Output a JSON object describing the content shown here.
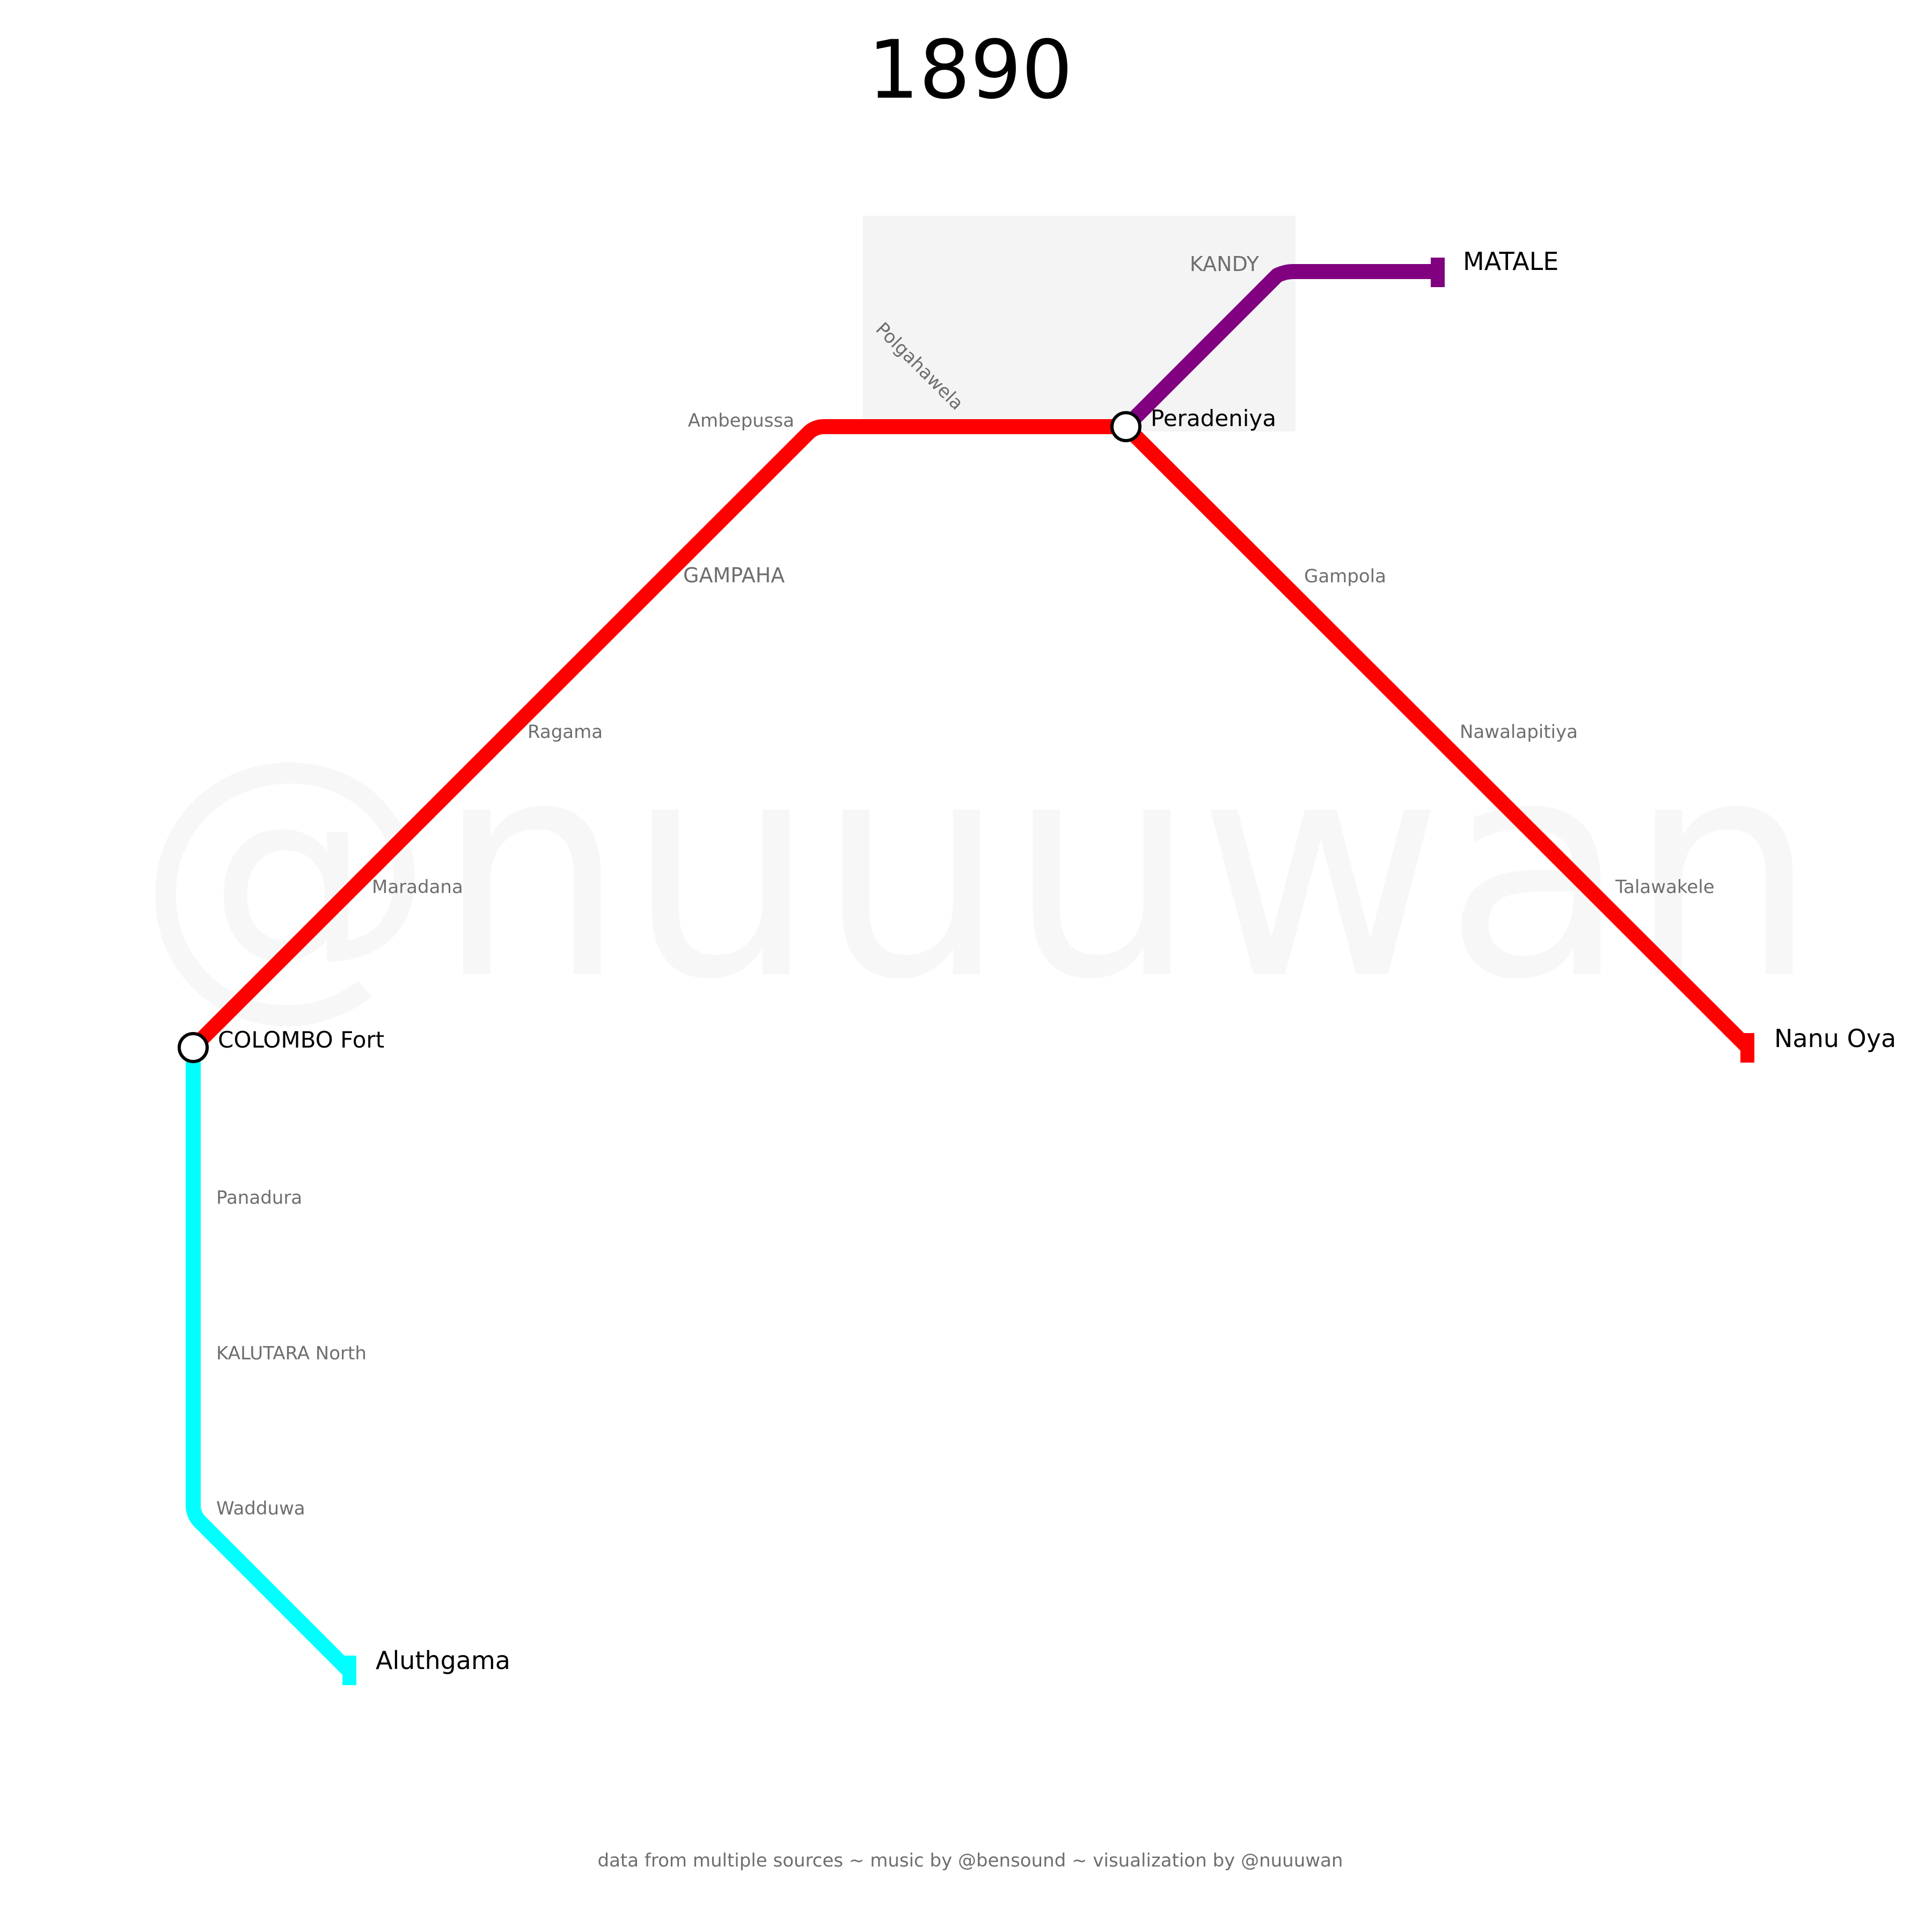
{
  "title": "1890",
  "watermark": "@nuuuwan",
  "footer": "data from multiple sources ~ music by @bensound ~ visualization by @nuuuwan",
  "colors": {
    "main_line": "#ff0000",
    "coast_line": "#00ffff",
    "matale_line": "#800080",
    "kandy_area": "#f4f4f4"
  },
  "stations": {
    "colombo_fort": "COLOMBO Fort",
    "peradeniya": "Peradeniya",
    "matale": "MATALE",
    "nanu_oya": "Nanu Oya",
    "aluthgama": "Aluthgama",
    "maradana": "Maradana",
    "ragama": "Ragama",
    "gampaha": "GAMPAHA",
    "ambepussa": "Ambepussa",
    "polgahawela": "Polgahawela",
    "kandy": "KANDY",
    "gampola": "Gampola",
    "nawalapitiya": "Nawalapitiya",
    "talawakele": "Talawakele",
    "panadura": "Panadura",
    "kalutara_north": "KALUTARA North",
    "wadduwa": "Wadduwa"
  }
}
